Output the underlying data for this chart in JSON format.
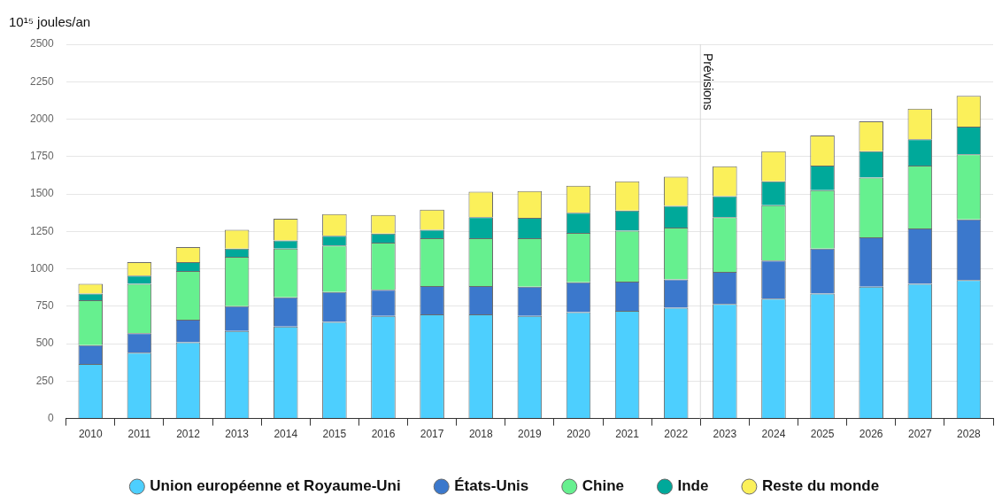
{
  "chart_data": {
    "type": "bar",
    "stacked": true,
    "ylabel": "10¹⁵ joules/an",
    "categories": [
      "2010",
      "2011",
      "2012",
      "2013",
      "2014",
      "2015",
      "2016",
      "2017",
      "2018",
      "2019",
      "2020",
      "2021",
      "2022",
      "2023",
      "2024",
      "2025",
      "2026",
      "2027",
      "2028"
    ],
    "series": [
      {
        "name": "Union européenne et Royaume-Uni",
        "color": "#4dcffe",
        "values": [
          365,
          440,
          510,
          585,
          615,
          645,
          685,
          695,
          695,
          685,
          710,
          720,
          740,
          765,
          800,
          835,
          880,
          900,
          925
        ]
      },
      {
        "name": "États-Unis",
        "color": "#3b78cc",
        "values": [
          125,
          130,
          150,
          165,
          195,
          200,
          175,
          190,
          190,
          195,
          200,
          195,
          190,
          215,
          255,
          300,
          330,
          370,
          405
        ]
      },
      {
        "name": "Chine",
        "color": "#66f08f",
        "values": [
          300,
          330,
          325,
          330,
          325,
          310,
          315,
          320,
          320,
          325,
          330,
          340,
          345,
          365,
          370,
          390,
          400,
          420,
          435
        ]
      },
      {
        "name": "Inde",
        "color": "#00a99a",
        "values": [
          45,
          55,
          60,
          55,
          55,
          65,
          60,
          55,
          140,
          135,
          135,
          135,
          145,
          140,
          160,
          165,
          175,
          175,
          185
        ]
      },
      {
        "name": "Reste du monde",
        "color": "#fbf05a",
        "values": [
          65,
          90,
          100,
          125,
          145,
          145,
          125,
          135,
          170,
          180,
          180,
          195,
          195,
          200,
          200,
          200,
          200,
          205,
          205
        ]
      }
    ],
    "ylim": [
      0,
      2500
    ],
    "yticks": [
      0,
      250,
      500,
      750,
      1000,
      1250,
      1500,
      1750,
      2000,
      2250,
      2500
    ],
    "grid": "y",
    "legend": "bottom",
    "ref_lines": [
      {
        "axis": "x",
        "value": "2023",
        "label": "Prévisions"
      }
    ]
  }
}
